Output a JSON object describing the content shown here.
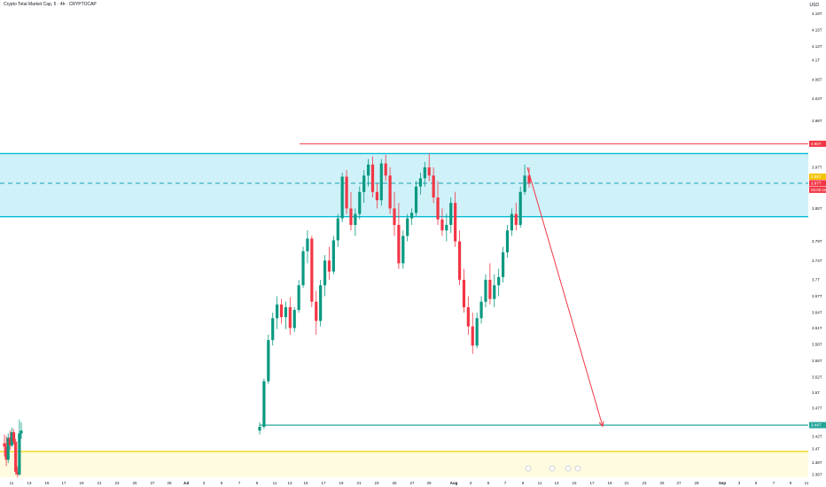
{
  "header": {
    "title": "Crypto Total Market Cap, 5 · 4h · CRYPTOCAP",
    "currency": "USD"
  },
  "colors": {
    "up": "#089981",
    "down": "#f23645",
    "zone_fill": "#c7eef7",
    "zone_line": "#00bcd4",
    "support_line": "#26a69a",
    "yellow_line": "#f5d000",
    "yellow_fill": "#fffbe0",
    "red_line": "#f23645",
    "dashed": "#2aa7b8"
  },
  "chart_data": {
    "type": "candlestick",
    "y_ticks": [
      "4.18T",
      "4.15T",
      "4.12T",
      "4.1T",
      "4.06T",
      "4.03T",
      "3.98T",
      "3.97T",
      "3.88T",
      "3.85T",
      "3.79T",
      "3.74T",
      "3.7T",
      "3.67T",
      "3.64T",
      "3.61T",
      "3.58T",
      "3.55T",
      "3.52T",
      "3.5T",
      "3.47T",
      "3.45T",
      "3.42T",
      "3.4T",
      "3.38T",
      "3.36T"
    ],
    "x_ticks": [
      "11",
      "13",
      "15",
      "17",
      "19",
      "21",
      "23",
      "25",
      "27",
      "29",
      "Jul",
      "3",
      "5",
      "7",
      "9",
      "11",
      "13",
      "15",
      "17",
      "19",
      "21",
      "23",
      "25",
      "27",
      "29",
      "Aug",
      "3",
      "5",
      "7",
      "9",
      "11",
      "13",
      "15",
      "17",
      "19",
      "21",
      "23",
      "25",
      "27",
      "29",
      "Sep",
      "3",
      "5",
      "7",
      "9",
      "11"
    ],
    "ylim": [
      3.34,
      4.21
    ],
    "levels": {
      "zone_top": 3.93,
      "zone_bottom": 3.815,
      "dashed_level": 3.876,
      "red_resistance": 3.948,
      "support": 3.435,
      "yellow_line": 3.387
    },
    "price_badges": {
      "red_label": "3.95T",
      "yellow_label": "3.88T",
      "current_price": "3.87T",
      "countdown": "03:00:16",
      "support_label": "3.44T"
    },
    "projection": {
      "from": [
        595,
        3.905
      ],
      "to": [
        680,
        3.433
      ]
    },
    "candles": [
      {
        "o": 3.402,
        "h": 3.418,
        "l": 3.378,
        "c": 3.396
      },
      {
        "o": 3.396,
        "h": 3.415,
        "l": 3.36,
        "c": 3.372
      },
      {
        "o": 3.372,
        "h": 3.42,
        "l": 3.366,
        "c": 3.412
      },
      {
        "o": 3.412,
        "h": 3.425,
        "l": 3.39,
        "c": 3.398
      },
      {
        "o": 3.398,
        "h": 3.43,
        "l": 3.395,
        "c": 3.422
      },
      {
        "o": 3.422,
        "h": 3.428,
        "l": 3.4,
        "c": 3.405
      },
      {
        "o": 3.405,
        "h": 3.41,
        "l": 3.345,
        "c": 3.35
      },
      {
        "o": 3.35,
        "h": 3.36,
        "l": 3.34,
        "c": 3.345
      },
      {
        "o": 3.345,
        "h": 3.445,
        "l": 3.343,
        "c": 3.42
      },
      {
        "o": 3.42,
        "h": 3.44,
        "l": 3.41,
        "c": 3.425
      },
      {
        "o": 3.425,
        "h": 3.44,
        "l": 3.418,
        "c": 3.432
      },
      {
        "o": 3.432,
        "h": 3.52,
        "l": 3.428,
        "c": 3.515
      },
      {
        "o": 3.515,
        "h": 3.6,
        "l": 3.51,
        "c": 3.59
      },
      {
        "o": 3.59,
        "h": 3.64,
        "l": 3.58,
        "c": 3.63
      },
      {
        "o": 3.63,
        "h": 3.67,
        "l": 3.61,
        "c": 3.655
      },
      {
        "o": 3.655,
        "h": 3.665,
        "l": 3.62,
        "c": 3.632
      },
      {
        "o": 3.632,
        "h": 3.66,
        "l": 3.61,
        "c": 3.65
      },
      {
        "o": 3.65,
        "h": 3.668,
        "l": 3.6,
        "c": 3.612
      },
      {
        "o": 3.612,
        "h": 3.65,
        "l": 3.605,
        "c": 3.645
      },
      {
        "o": 3.645,
        "h": 3.7,
        "l": 3.64,
        "c": 3.69
      },
      {
        "o": 3.69,
        "h": 3.76,
        "l": 3.685,
        "c": 3.752
      },
      {
        "o": 3.752,
        "h": 3.79,
        "l": 3.73,
        "c": 3.775
      },
      {
        "o": 3.775,
        "h": 3.78,
        "l": 3.65,
        "c": 3.66
      },
      {
        "o": 3.66,
        "h": 3.68,
        "l": 3.6,
        "c": 3.625
      },
      {
        "o": 3.625,
        "h": 3.7,
        "l": 3.615,
        "c": 3.69
      },
      {
        "o": 3.69,
        "h": 3.745,
        "l": 3.67,
        "c": 3.735
      },
      {
        "o": 3.735,
        "h": 3.76,
        "l": 3.7,
        "c": 3.715
      },
      {
        "o": 3.715,
        "h": 3.78,
        "l": 3.71,
        "c": 3.772
      },
      {
        "o": 3.772,
        "h": 3.82,
        "l": 3.76,
        "c": 3.812
      },
      {
        "o": 3.812,
        "h": 3.895,
        "l": 3.805,
        "c": 3.888
      },
      {
        "o": 3.888,
        "h": 3.9,
        "l": 3.82,
        "c": 3.83
      },
      {
        "o": 3.83,
        "h": 3.86,
        "l": 3.79,
        "c": 3.8
      },
      {
        "o": 3.8,
        "h": 3.83,
        "l": 3.78,
        "c": 3.82
      },
      {
        "o": 3.82,
        "h": 3.87,
        "l": 3.81,
        "c": 3.86
      },
      {
        "o": 3.86,
        "h": 3.9,
        "l": 3.84,
        "c": 3.89
      },
      {
        "o": 3.89,
        "h": 3.92,
        "l": 3.87,
        "c": 3.91
      },
      {
        "o": 3.91,
        "h": 3.925,
        "l": 3.85,
        "c": 3.86
      },
      {
        "o": 3.86,
        "h": 3.875,
        "l": 3.83,
        "c": 3.845
      },
      {
        "o": 3.845,
        "h": 3.92,
        "l": 3.835,
        "c": 3.912
      },
      {
        "o": 3.912,
        "h": 3.928,
        "l": 3.88,
        "c": 3.89
      },
      {
        "o": 3.89,
        "h": 3.905,
        "l": 3.82,
        "c": 3.83
      },
      {
        "o": 3.83,
        "h": 3.86,
        "l": 3.78,
        "c": 3.8
      },
      {
        "o": 3.8,
        "h": 3.84,
        "l": 3.72,
        "c": 3.73
      },
      {
        "o": 3.73,
        "h": 3.79,
        "l": 3.72,
        "c": 3.78
      },
      {
        "o": 3.78,
        "h": 3.82,
        "l": 3.77,
        "c": 3.812
      },
      {
        "o": 3.812,
        "h": 3.83,
        "l": 3.8,
        "c": 3.822
      },
      {
        "o": 3.822,
        "h": 3.88,
        "l": 3.815,
        "c": 3.87
      },
      {
        "o": 3.87,
        "h": 3.895,
        "l": 3.855,
        "c": 3.885
      },
      {
        "o": 3.885,
        "h": 3.915,
        "l": 3.87,
        "c": 3.905
      },
      {
        "o": 3.905,
        "h": 3.93,
        "l": 3.88,
        "c": 3.89
      },
      {
        "o": 3.89,
        "h": 3.905,
        "l": 3.84,
        "c": 3.85
      },
      {
        "o": 3.85,
        "h": 3.88,
        "l": 3.8,
        "c": 3.81
      },
      {
        "o": 3.81,
        "h": 3.83,
        "l": 3.78,
        "c": 3.79
      },
      {
        "o": 3.79,
        "h": 3.82,
        "l": 3.77,
        "c": 3.8
      },
      {
        "o": 3.8,
        "h": 3.85,
        "l": 3.785,
        "c": 3.84
      },
      {
        "o": 3.84,
        "h": 3.86,
        "l": 3.76,
        "c": 3.77
      },
      {
        "o": 3.77,
        "h": 3.79,
        "l": 3.69,
        "c": 3.7
      },
      {
        "o": 3.7,
        "h": 3.72,
        "l": 3.64,
        "c": 3.65
      },
      {
        "o": 3.65,
        "h": 3.67,
        "l": 3.6,
        "c": 3.615
      },
      {
        "o": 3.615,
        "h": 3.64,
        "l": 3.565,
        "c": 3.58
      },
      {
        "o": 3.58,
        "h": 3.64,
        "l": 3.575,
        "c": 3.63
      },
      {
        "o": 3.63,
        "h": 3.67,
        "l": 3.62,
        "c": 3.66
      },
      {
        "o": 3.66,
        "h": 3.71,
        "l": 3.65,
        "c": 3.7
      },
      {
        "o": 3.7,
        "h": 3.73,
        "l": 3.655,
        "c": 3.665
      },
      {
        "o": 3.665,
        "h": 3.71,
        "l": 3.65,
        "c": 3.69
      },
      {
        "o": 3.69,
        "h": 3.72,
        "l": 3.67,
        "c": 3.705
      },
      {
        "o": 3.705,
        "h": 3.76,
        "l": 3.695,
        "c": 3.75
      },
      {
        "o": 3.75,
        "h": 3.8,
        "l": 3.74,
        "c": 3.79
      },
      {
        "o": 3.79,
        "h": 3.83,
        "l": 3.78,
        "c": 3.82
      },
      {
        "o": 3.82,
        "h": 3.84,
        "l": 3.79,
        "c": 3.8
      },
      {
        "o": 3.8,
        "h": 3.87,
        "l": 3.795,
        "c": 3.86
      },
      {
        "o": 3.86,
        "h": 3.91,
        "l": 3.855,
        "c": 3.89
      },
      {
        "o": 3.89,
        "h": 3.905,
        "l": 3.868,
        "c": 3.876
      }
    ]
  }
}
